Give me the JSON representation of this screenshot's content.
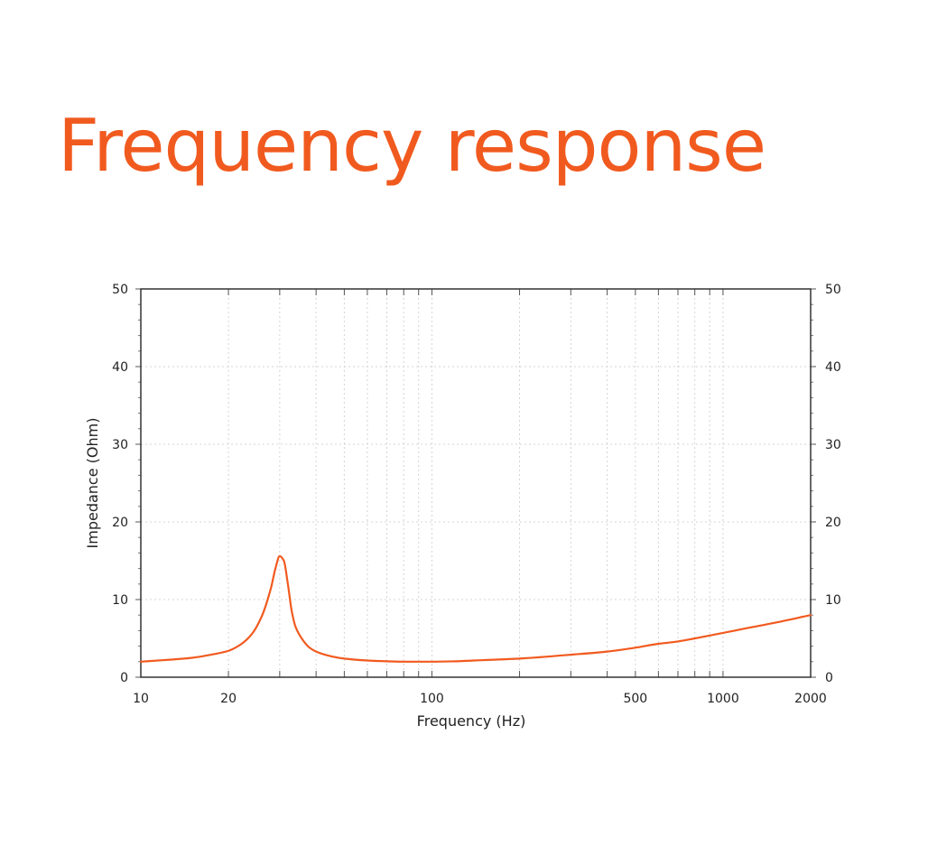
{
  "page": {
    "title": "Frequency response",
    "accent_color": "#f15a1f"
  },
  "chart_data": {
    "type": "line",
    "title": "",
    "xlabel": "Frequency (Hz)",
    "ylabel": "Impedance (Ohm)",
    "x_scale": "log",
    "xlim": [
      10,
      2000
    ],
    "ylim": [
      0,
      50
    ],
    "grid": true,
    "x_ticks": [
      10,
      20,
      100,
      500,
      1000,
      2000
    ],
    "x_tick_labels": [
      "10",
      "20",
      "100",
      "500",
      "1000",
      "2000"
    ],
    "y_ticks": [
      0,
      10,
      20,
      30,
      40,
      50
    ],
    "y_tick_labels": [
      "0",
      "10",
      "20",
      "30",
      "40",
      "50"
    ],
    "x_minor_grid": [
      20,
      30,
      40,
      50,
      60,
      70,
      80,
      90,
      100,
      200,
      300,
      400,
      500,
      600,
      700,
      800,
      900,
      1000
    ],
    "series": [
      {
        "color": "#f15a1f",
        "x": [
          10,
          12,
          15,
          18,
          20,
          22,
          24,
          26,
          28,
          29,
          30,
          31,
          32,
          33,
          34,
          36,
          38,
          40,
          45,
          50,
          60,
          70,
          80,
          100,
          120,
          150,
          200,
          300,
          400,
          500,
          600,
          700,
          800,
          1000,
          1200,
          1500,
          2000
        ],
        "y": [
          2.0,
          2.2,
          2.5,
          3.0,
          3.4,
          4.2,
          5.5,
          7.8,
          11.5,
          14.0,
          15.6,
          15.0,
          12.0,
          8.5,
          6.5,
          4.8,
          3.8,
          3.3,
          2.7,
          2.4,
          2.15,
          2.05,
          2.0,
          2.0,
          2.05,
          2.2,
          2.4,
          2.9,
          3.3,
          3.8,
          4.3,
          4.6,
          5.0,
          5.7,
          6.3,
          7.0,
          8.0
        ]
      }
    ]
  }
}
